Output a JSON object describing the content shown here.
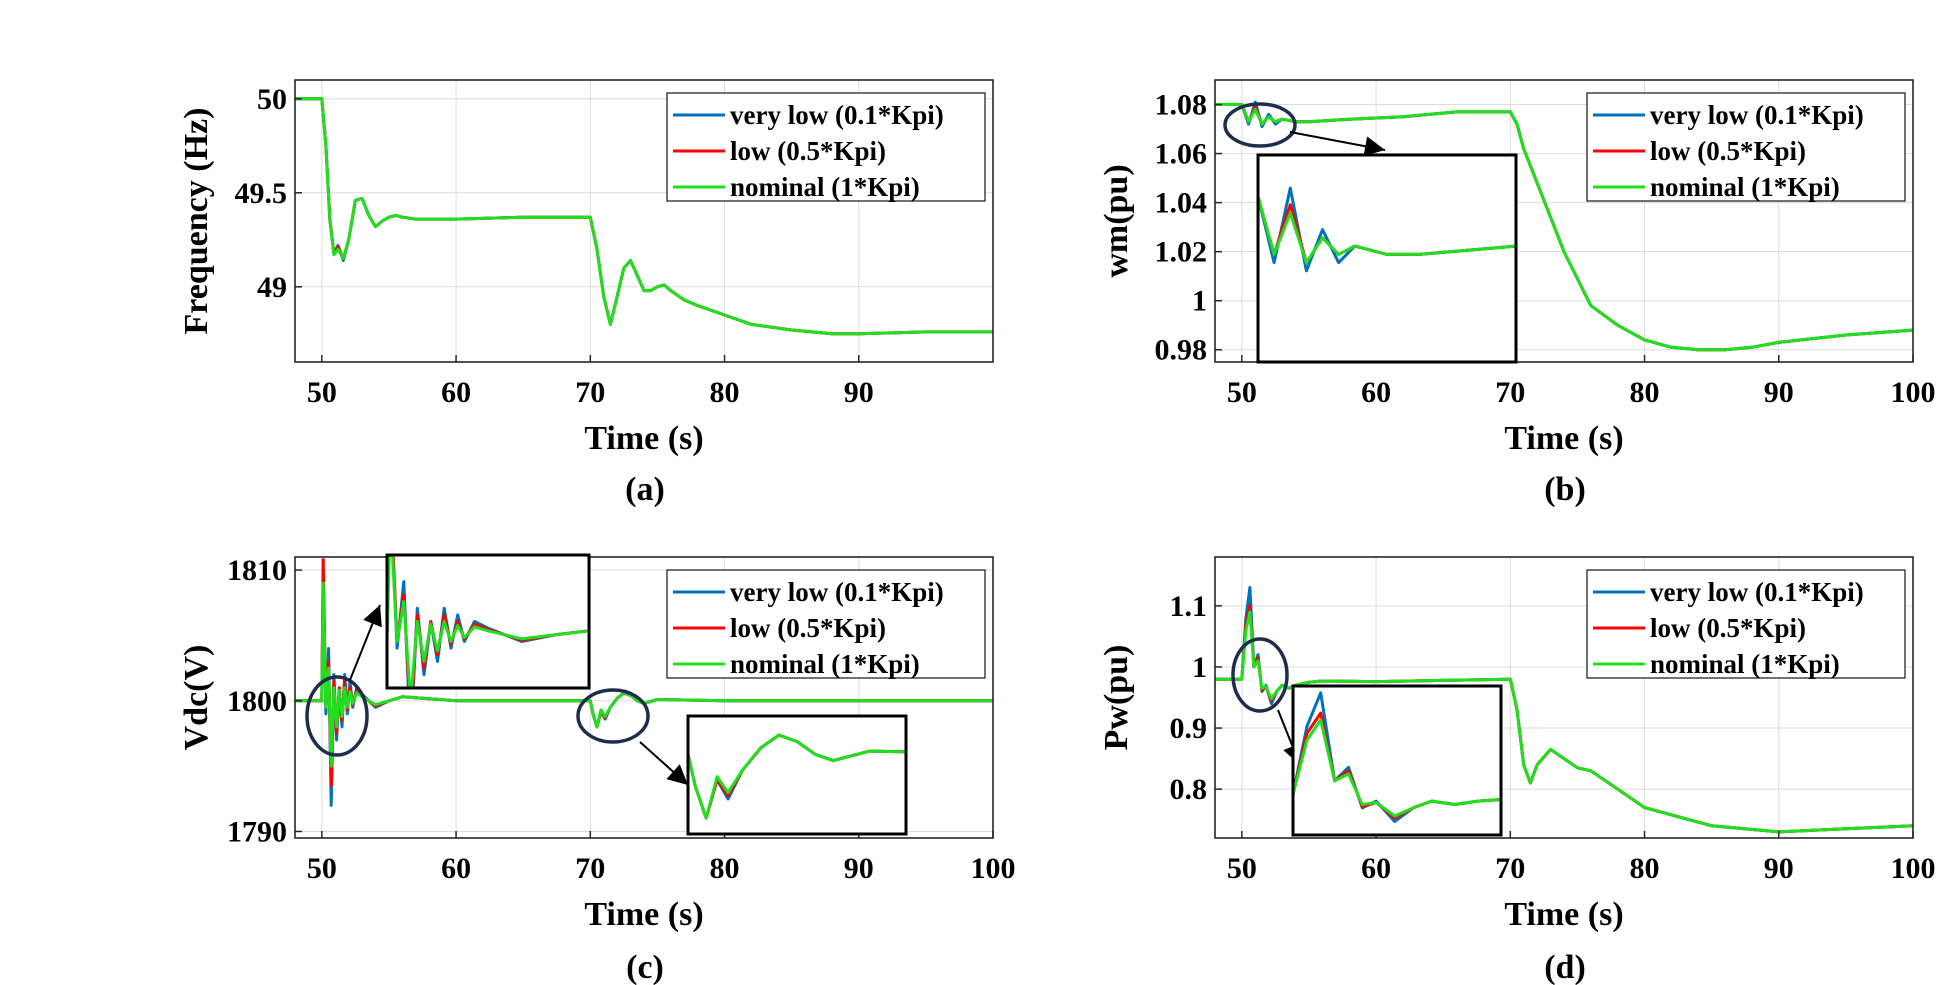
{
  "chart_data": [
    {
      "type": "line",
      "id": "a",
      "caption": "(a)",
      "xlabel": "Time (s)",
      "ylabel": "Frequency (Hz)",
      "xlim": [
        48,
        100
      ],
      "ylim": [
        48.6,
        50.1
      ],
      "xticks": [
        50,
        60,
        70,
        80,
        90
      ],
      "yticks": [
        49,
        49.5,
        50
      ],
      "grid": true,
      "legend_position": "top-right",
      "series": [
        {
          "name": "very low (0.1*Kpi)",
          "color": "#0072BD",
          "x": [
            48,
            50,
            50.3,
            50.6,
            50.9,
            51.2,
            51.6,
            52.0,
            52.5,
            53,
            53.5,
            54,
            54.5,
            55,
            55.5,
            56,
            57,
            60,
            65,
            70,
            70.5,
            71,
            71.5,
            72,
            72.5,
            73,
            73.5,
            74,
            74.5,
            75,
            75.5,
            76,
            77,
            78,
            80,
            82,
            85,
            88,
            90,
            95,
            100
          ],
          "y": [
            50,
            50,
            49.75,
            49.35,
            49.18,
            49.22,
            49.14,
            49.25,
            49.46,
            49.47,
            49.38,
            49.32,
            49.35,
            49.37,
            49.38,
            49.37,
            49.36,
            49.36,
            49.37,
            49.37,
            49.2,
            48.95,
            48.8,
            48.95,
            49.1,
            49.14,
            49.06,
            48.98,
            48.98,
            49.0,
            49.01,
            48.98,
            48.93,
            48.9,
            48.85,
            48.8,
            48.77,
            48.75,
            48.75,
            48.76,
            48.76
          ]
        },
        {
          "name": "low (0.5*Kpi)",
          "color": "#FF0000",
          "x": [
            48,
            50,
            50.3,
            50.6,
            50.9,
            51.2,
            51.6,
            52.0,
            52.5,
            53,
            53.5,
            54,
            54.5,
            55,
            55.5,
            56,
            57,
            60,
            65,
            70,
            70.5,
            71,
            71.5,
            72,
            72.5,
            73,
            73.5,
            74,
            74.5,
            75,
            75.5,
            76,
            77,
            78,
            80,
            82,
            85,
            88,
            90,
            95,
            100
          ],
          "y": [
            50,
            50,
            49.75,
            49.36,
            49.18,
            49.21,
            49.15,
            49.25,
            49.46,
            49.47,
            49.38,
            49.32,
            49.35,
            49.37,
            49.38,
            49.37,
            49.36,
            49.36,
            49.37,
            49.37,
            49.2,
            48.95,
            48.8,
            48.95,
            49.1,
            49.14,
            49.06,
            48.98,
            48.98,
            49.0,
            49.01,
            48.98,
            48.93,
            48.9,
            48.85,
            48.8,
            48.77,
            48.75,
            48.75,
            48.76,
            48.76
          ]
        },
        {
          "name": "nominal (1*Kpi)",
          "color": "#1EE01E",
          "x": [
            48,
            50,
            50.3,
            50.6,
            50.9,
            51.2,
            51.6,
            52.0,
            52.5,
            53,
            53.5,
            54,
            54.5,
            55,
            55.5,
            56,
            57,
            60,
            65,
            70,
            70.5,
            71,
            71.5,
            72,
            72.5,
            73,
            73.5,
            74,
            74.5,
            75,
            75.5,
            76,
            77,
            78,
            80,
            82,
            85,
            88,
            90,
            95,
            100
          ],
          "y": [
            50,
            50,
            49.75,
            49.36,
            49.17,
            49.2,
            49.15,
            49.25,
            49.46,
            49.47,
            49.38,
            49.32,
            49.35,
            49.37,
            49.38,
            49.37,
            49.36,
            49.36,
            49.37,
            49.37,
            49.2,
            48.95,
            48.8,
            48.95,
            49.1,
            49.14,
            49.06,
            48.98,
            48.98,
            49.0,
            49.01,
            48.98,
            48.93,
            48.9,
            48.85,
            48.8,
            48.77,
            48.75,
            48.75,
            48.76,
            48.76
          ]
        }
      ]
    },
    {
      "type": "line",
      "id": "b",
      "caption": "(b)",
      "xlabel": "Time (s)",
      "ylabel": "wm(pu)",
      "xlim": [
        48,
        100
      ],
      "ylim": [
        0.975,
        1.09
      ],
      "xticks": [
        50,
        60,
        70,
        80,
        90,
        100
      ],
      "yticks": [
        0.98,
        1,
        1.02,
        1.04,
        1.06,
        1.08
      ],
      "grid": true,
      "legend_position": "top-right",
      "series": [
        {
          "name": "very low (0.1*Kpi)",
          "color": "#0072BD",
          "x": [
            48,
            50,
            50.5,
            51,
            51.5,
            52,
            52.5,
            53,
            54,
            55,
            58,
            62,
            66,
            70,
            70.5,
            71,
            72,
            74,
            76,
            78,
            80,
            82,
            84,
            85,
            86,
            88,
            90,
            95,
            100
          ],
          "y": [
            1.08,
            1.08,
            1.072,
            1.081,
            1.071,
            1.076,
            1.072,
            1.074,
            1.073,
            1.073,
            1.074,
            1.075,
            1.077,
            1.077,
            1.072,
            1.062,
            1.048,
            1.02,
            0.998,
            0.99,
            0.984,
            0.981,
            0.98,
            0.98,
            0.98,
            0.981,
            0.983,
            0.986,
            0.988
          ]
        },
        {
          "name": "low (0.5*Kpi)",
          "color": "#FF0000",
          "x": [
            48,
            50,
            50.5,
            51,
            51.5,
            52,
            52.5,
            53,
            54,
            55,
            58,
            62,
            66,
            70,
            70.5,
            71,
            72,
            74,
            76,
            78,
            80,
            82,
            84,
            85,
            86,
            88,
            90,
            95,
            100
          ],
          "y": [
            1.08,
            1.08,
            1.073,
            1.079,
            1.072,
            1.075,
            1.073,
            1.074,
            1.073,
            1.073,
            1.074,
            1.075,
            1.077,
            1.077,
            1.072,
            1.062,
            1.048,
            1.02,
            0.998,
            0.99,
            0.984,
            0.981,
            0.98,
            0.98,
            0.98,
            0.981,
            0.983,
            0.986,
            0.988
          ]
        },
        {
          "name": "nominal (1*Kpi)",
          "color": "#1EE01E",
          "x": [
            48,
            50,
            50.5,
            51,
            51.5,
            52,
            52.5,
            53,
            54,
            55,
            58,
            62,
            66,
            70,
            70.5,
            71,
            72,
            74,
            76,
            78,
            80,
            82,
            84,
            85,
            86,
            88,
            90,
            95,
            100
          ],
          "y": [
            1.08,
            1.08,
            1.073,
            1.078,
            1.072,
            1.075,
            1.073,
            1.074,
            1.073,
            1.073,
            1.074,
            1.075,
            1.077,
            1.077,
            1.072,
            1.062,
            1.048,
            1.02,
            0.998,
            0.99,
            0.984,
            0.981,
            0.98,
            0.98,
            0.98,
            0.981,
            0.983,
            0.986,
            0.988
          ]
        }
      ]
    },
    {
      "type": "line",
      "id": "c",
      "caption": "(c)",
      "xlabel": "Time (s)",
      "ylabel": "Vdc(V)",
      "xlim": [
        48,
        100
      ],
      "ylim": [
        1789.5,
        1811
      ],
      "xticks": [
        50,
        60,
        70,
        80,
        90,
        100
      ],
      "yticks": [
        1790,
        1800,
        1810
      ],
      "grid": true,
      "legend_position": "top-right",
      "series": [
        {
          "name": "very low (0.1*Kpi)",
          "color": "#0072BD",
          "x": [
            48,
            50,
            50.1,
            50.3,
            50.5,
            50.7,
            50.9,
            51.1,
            51.3,
            51.5,
            51.7,
            51.9,
            52.1,
            52.3,
            52.6,
            53,
            53.5,
            54,
            55,
            56,
            60,
            65,
            70,
            70.2,
            70.5,
            70.8,
            71.1,
            71.5,
            72,
            72.5,
            73,
            73.5,
            74,
            75,
            80,
            90,
            100
          ],
          "y": [
            1800,
            1800,
            1810,
            1799,
            1804,
            1792,
            1802,
            1797,
            1801,
            1798,
            1802,
            1799,
            1801.5,
            1799.5,
            1801,
            1800.5,
            1800,
            1799.5,
            1800,
            1800.3,
            1800,
            1800,
            1800,
            1799,
            1798,
            1799.2,
            1798.6,
            1799.5,
            1800.2,
            1800.6,
            1800.4,
            1800,
            1799.8,
            1800.1,
            1800,
            1800,
            1800
          ]
        },
        {
          "name": "low (0.5*Kpi)",
          "color": "#FF0000",
          "x": [
            48,
            50,
            50.1,
            50.3,
            50.5,
            50.7,
            50.9,
            51.1,
            51.3,
            51.5,
            51.7,
            51.9,
            52.1,
            52.3,
            52.6,
            53,
            53.5,
            54,
            55,
            56,
            60,
            65,
            70,
            70.2,
            70.5,
            70.8,
            71.1,
            71.5,
            72,
            72.5,
            73,
            73.5,
            74,
            75,
            80,
            90,
            100
          ],
          "y": [
            1800,
            1800,
            1810.8,
            1799.5,
            1803,
            1793.5,
            1801.5,
            1797.5,
            1801,
            1798.5,
            1801.5,
            1799.3,
            1801,
            1799.7,
            1800.8,
            1800.4,
            1800,
            1799.6,
            1800,
            1800.3,
            1800,
            1800,
            1800,
            1799,
            1798,
            1799.2,
            1798.7,
            1799.5,
            1800.2,
            1800.6,
            1800.4,
            1800,
            1799.8,
            1800.1,
            1800,
            1800,
            1800
          ]
        },
        {
          "name": "nominal (1*Kpi)",
          "color": "#1EE01E",
          "x": [
            48,
            50,
            50.1,
            50.3,
            50.5,
            50.7,
            50.9,
            51.1,
            51.3,
            51.5,
            51.7,
            51.9,
            52.1,
            52.3,
            52.6,
            53,
            53.5,
            54,
            55,
            56,
            60,
            65,
            70,
            70.2,
            70.5,
            70.8,
            71.1,
            71.5,
            72,
            72.5,
            73,
            73.5,
            74,
            75,
            80,
            90,
            100
          ],
          "y": [
            1800,
            1800,
            1809,
            1799.5,
            1802.5,
            1795,
            1801,
            1798,
            1800.8,
            1798.8,
            1801,
            1799.5,
            1800.7,
            1799.8,
            1800.6,
            1800.3,
            1800,
            1799.7,
            1800,
            1800.3,
            1800,
            1800,
            1800,
            1799,
            1798,
            1799.3,
            1798.8,
            1799.5,
            1800.2,
            1800.6,
            1800.4,
            1800,
            1799.8,
            1800.1,
            1800,
            1800,
            1800
          ]
        }
      ]
    },
    {
      "type": "line",
      "id": "d",
      "caption": "(d)",
      "xlabel": "Time (s)",
      "ylabel": "Pw(pu)",
      "xlim": [
        48,
        100
      ],
      "ylim": [
        0.72,
        1.18
      ],
      "xticks": [
        50,
        60,
        70,
        80,
        90,
        100
      ],
      "yticks": [
        0.8,
        0.9,
        1,
        1.1
      ],
      "grid": true,
      "legend_position": "top-right",
      "series": [
        {
          "name": "very low (0.1*Kpi)",
          "color": "#0072BD",
          "x": [
            48,
            50,
            50.3,
            50.6,
            50.9,
            51.2,
            51.5,
            51.8,
            52.2,
            52.6,
            53,
            53.5,
            54,
            55,
            56,
            60,
            65,
            70,
            70.5,
            71,
            71.5,
            72,
            73,
            74,
            75,
            76,
            78,
            80,
            85,
            90,
            95,
            100
          ],
          "y": [
            0.98,
            0.98,
            1.08,
            1.13,
            1.0,
            1.02,
            0.96,
            0.97,
            0.94,
            0.96,
            0.97,
            0.965,
            0.97,
            0.975,
            0.977,
            0.976,
            0.978,
            0.98,
            0.93,
            0.84,
            0.81,
            0.84,
            0.865,
            0.85,
            0.835,
            0.83,
            0.8,
            0.77,
            0.74,
            0.73,
            0.735,
            0.74
          ]
        },
        {
          "name": "low (0.5*Kpi)",
          "color": "#FF0000",
          "x": [
            48,
            50,
            50.3,
            50.6,
            50.9,
            51.2,
            51.5,
            51.8,
            52.2,
            52.6,
            53,
            53.5,
            54,
            55,
            56,
            60,
            65,
            70,
            70.5,
            71,
            71.5,
            72,
            73,
            74,
            75,
            76,
            78,
            80,
            85,
            90,
            95,
            100
          ],
          "y": [
            0.98,
            0.98,
            1.07,
            1.1,
            1.0,
            1.015,
            0.962,
            0.968,
            0.945,
            0.96,
            0.97,
            0.965,
            0.97,
            0.975,
            0.977,
            0.976,
            0.978,
            0.98,
            0.93,
            0.84,
            0.81,
            0.84,
            0.865,
            0.85,
            0.835,
            0.83,
            0.8,
            0.77,
            0.74,
            0.73,
            0.735,
            0.74
          ]
        },
        {
          "name": "nominal (1*Kpi)",
          "color": "#1EE01E",
          "x": [
            48,
            50,
            50.3,
            50.6,
            50.9,
            51.2,
            51.5,
            51.8,
            52.2,
            52.6,
            53,
            53.5,
            54,
            55,
            56,
            60,
            65,
            70,
            70.5,
            71,
            71.5,
            72,
            73,
            74,
            75,
            76,
            78,
            80,
            85,
            90,
            95,
            100
          ],
          "y": [
            0.98,
            0.98,
            1.06,
            1.09,
            1.0,
            1.01,
            0.965,
            0.968,
            0.948,
            0.96,
            0.97,
            0.965,
            0.97,
            0.975,
            0.977,
            0.976,
            0.978,
            0.98,
            0.93,
            0.84,
            0.81,
            0.84,
            0.865,
            0.85,
            0.835,
            0.83,
            0.8,
            0.77,
            0.74,
            0.73,
            0.735,
            0.74
          ]
        }
      ]
    }
  ]
}
